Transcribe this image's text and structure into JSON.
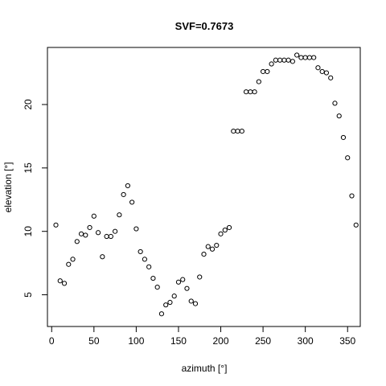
{
  "chart_data": {
    "type": "scatter",
    "title": "SVF=0.7673",
    "xlabel": "azimuth [°]",
    "ylabel": "elevation [°]",
    "xlim": [
      -5,
      365
    ],
    "ylim": [
      2.5,
      24.5
    ],
    "xticks": [
      0,
      50,
      100,
      150,
      200,
      250,
      300,
      350
    ],
    "yticks": [
      5,
      10,
      15,
      20
    ],
    "marker": "open-circle",
    "series": [
      {
        "x": [
          5,
          10,
          15,
          20,
          25,
          30,
          35,
          40,
          45,
          50,
          55,
          60,
          65,
          70,
          75,
          80,
          85,
          90,
          95,
          100,
          105,
          110,
          115,
          120,
          125,
          130,
          135,
          140,
          145,
          150,
          155,
          160,
          165,
          170,
          175,
          180,
          185,
          190,
          195,
          200,
          205,
          210,
          215,
          220,
          225,
          230,
          235,
          240,
          245,
          250,
          255,
          260,
          265,
          270,
          275,
          280,
          285,
          290,
          295,
          300,
          305,
          310,
          315,
          320,
          325,
          330,
          335,
          340,
          345,
          350,
          355,
          360
        ],
        "y": [
          10.5,
          6.1,
          5.9,
          7.4,
          7.8,
          9.2,
          9.8,
          9.7,
          10.3,
          11.2,
          9.9,
          8.0,
          9.6,
          9.6,
          10.0,
          11.3,
          12.9,
          13.6,
          12.3,
          10.2,
          8.4,
          7.8,
          7.2,
          6.3,
          5.6,
          3.5,
          4.2,
          4.4,
          4.9,
          6.0,
          6.2,
          5.5,
          4.5,
          4.3,
          6.4,
          8.2,
          8.8,
          8.6,
          8.9,
          9.8,
          10.1,
          10.3,
          17.9,
          17.9,
          17.9,
          21.0,
          21.0,
          21.0,
          21.8,
          22.6,
          22.6,
          23.2,
          23.5,
          23.5,
          23.5,
          23.5,
          23.4,
          23.9,
          23.7,
          23.7,
          23.7,
          23.7,
          22.9,
          22.6,
          22.5,
          22.1,
          20.1,
          19.1,
          17.4,
          15.8,
          12.8,
          10.5
        ]
      }
    ]
  }
}
